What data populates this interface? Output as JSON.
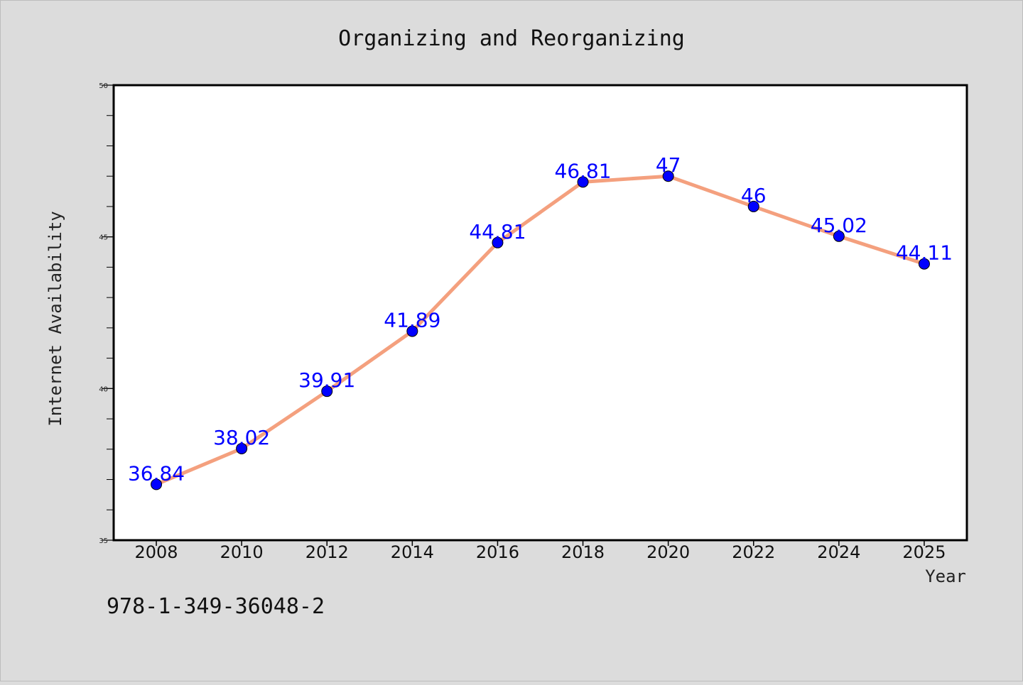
{
  "chart_data": {
    "type": "line",
    "title": "Organizing and Reorganizing",
    "xlabel": "Year",
    "ylabel": "Internet Availability",
    "xlim": [
      2007,
      2027
    ],
    "ylim": [
      35,
      50
    ],
    "x_ticks": [
      2008,
      2010,
      2012,
      2014,
      2016,
      2018,
      2020,
      2022,
      2024,
      2025
    ],
    "y_ticks": [
      35,
      40,
      45,
      50
    ],
    "grid": false,
    "series": [
      {
        "x": [
          2008,
          2010,
          2012,
          2014,
          2016,
          2018,
          2020,
          2022,
          2024,
          2026
        ],
        "values": [
          36.84,
          38.02,
          39.91,
          41.89,
          44.81,
          46.81,
          47,
          46,
          45.02,
          44.11
        ],
        "data_labels": [
          "36.84",
          "38.02",
          "39.91",
          "41.89",
          "44.81",
          "46.81",
          "47",
          "46",
          "45.02",
          "44.11"
        ]
      }
    ],
    "colors": {
      "line": "#f4a07e",
      "marker": "#0000ff",
      "data_label": "#0000ff",
      "background": "#dcdcdc",
      "plot_area": "#ffffff"
    }
  },
  "footer_text": "978-1-349-36048-2"
}
